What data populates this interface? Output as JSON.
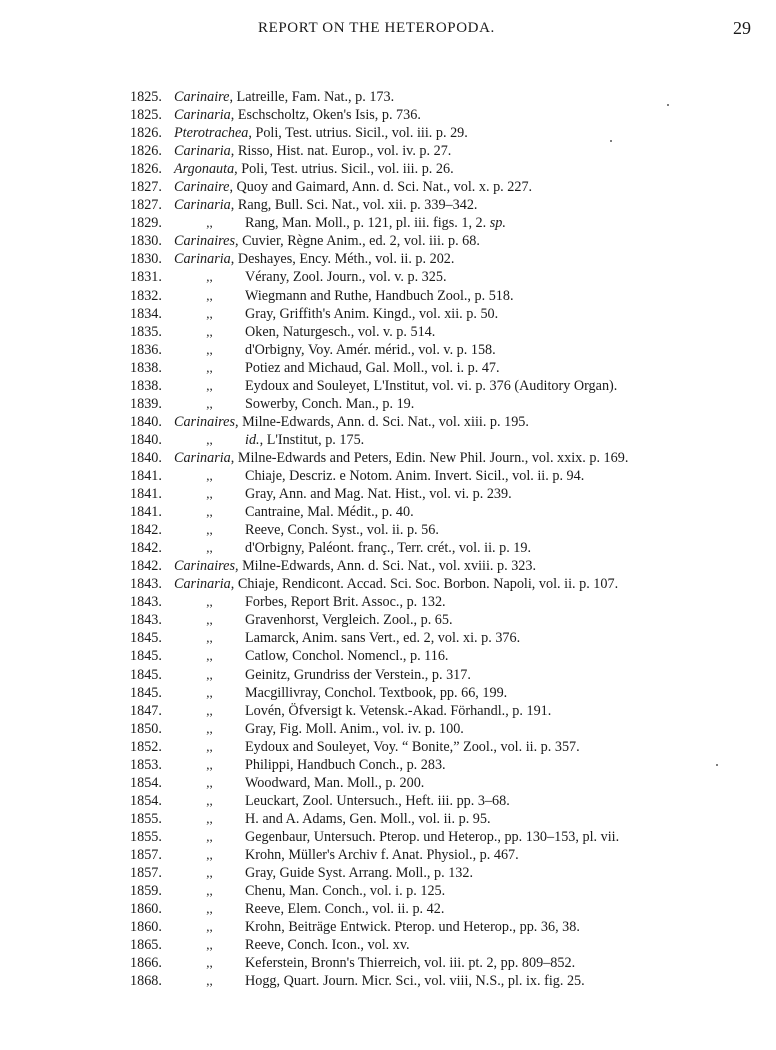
{
  "header": {
    "title": "REPORT ON THE HETEROPODA.",
    "page_number": "29"
  },
  "ditto_mark": ",,",
  "entries": [
    {
      "year": "1825.",
      "genus": "Carinaire",
      "ref": "Latreille, Fam. Nat., p. 173."
    },
    {
      "year": "1825.",
      "genus": "Carinaria",
      "ref": "Eschscholtz, Oken's Isis, p. 736."
    },
    {
      "year": "1826.",
      "genus": "Pterotrachea",
      "ref": "Poli, Test. utrius. Sicil., vol. iii. p. 29."
    },
    {
      "year": "1826.",
      "genus": "Carinaria",
      "ref": "Risso, Hist. nat. Europ., vol. iv. p. 27."
    },
    {
      "year": "1826.",
      "genus": "Argonauta",
      "ref": "Poli, Test. utrius. Sicil., vol. iii. p. 26."
    },
    {
      "year": "1827.",
      "genus": "Carinaire",
      "ref": "Quoy and Gaimard, Ann. d. Sci. Nat., vol. x. p. 227."
    },
    {
      "year": "1827.",
      "genus": "Carinaria",
      "ref": "Rang, Bull. Sci. Nat., vol. xii. p. 339–342."
    },
    {
      "year": "1829.",
      "genus": "",
      "ref": "Rang, Man. Moll., p. 121, pl. iii. figs. 1, 2. ",
      "post_em": "sp."
    },
    {
      "year": "1830.",
      "genus": "Carinaires",
      "ref": "Cuvier, Règne Anim., ed. 2, vol. iii. p. 68."
    },
    {
      "year": "1830.",
      "genus": "Carinaria",
      "ref": "Deshayes, Ency. Méth., vol. ii. p. 202."
    },
    {
      "year": "1831.",
      "genus": "",
      "ref": "Vérany, Zool. Journ., vol. v. p. 325."
    },
    {
      "year": "1832.",
      "genus": "",
      "ref": "Wiegmann and Ruthe, Handbuch Zool., p. 518."
    },
    {
      "year": "1834.",
      "genus": "",
      "ref": "Gray, Griffith's Anim. Kingd., vol. xii. p. 50."
    },
    {
      "year": "1835.",
      "genus": "",
      "ref": "Oken, Naturgesch., vol. v. p. 514."
    },
    {
      "year": "1836.",
      "genus": "",
      "ref": "d'Orbigny, Voy. Amér. mérid., vol. v. p. 158."
    },
    {
      "year": "1838.",
      "genus": "",
      "ref": "Potiez and Michaud, Gal. Moll., vol. i. p. 47."
    },
    {
      "year": "1838.",
      "genus": "",
      "ref": "Eydoux and Souleyet, L'Institut, vol. vi. p. 376 (Auditory Organ)."
    },
    {
      "year": "1839.",
      "genus": "",
      "ref": "Sowerby, Conch. Man., p. 19."
    },
    {
      "year": "1840.",
      "genus": "Carinaires",
      "ref": "Milne-Edwards, Ann. d. Sci. Nat., vol. xiii. p. 195."
    },
    {
      "year": "1840.",
      "genus": "",
      "pre_em": "id.",
      "ref": ", L'Institut, p. 175."
    },
    {
      "year": "1840.",
      "genus": "Carinaria",
      "ref": "Milne-Edwards and Peters, Edin. New Phil. Journ., vol. xxix. p. 169."
    },
    {
      "year": "1841.",
      "genus": "",
      "ref": "Chiaje, Descriz. e Notom. Anim. Invert. Sicil., vol. ii. p. 94."
    },
    {
      "year": "1841.",
      "genus": "",
      "ref": "Gray, Ann. and Mag. Nat. Hist., vol. vi. p. 239."
    },
    {
      "year": "1841.",
      "genus": "",
      "ref": "Cantraine, Mal. Médit., p. 40."
    },
    {
      "year": "1842.",
      "genus": "",
      "ref": "Reeve, Conch. Syst., vol. ii. p. 56."
    },
    {
      "year": "1842.",
      "genus": "",
      "ref": "d'Orbigny, Paléont. franç., Terr. crét., vol. ii. p. 19."
    },
    {
      "year": "1842.",
      "genus": "Carinaires",
      "ref": "Milne-Edwards, Ann. d. Sci. Nat., vol. xviii. p. 323."
    },
    {
      "year": "1843.",
      "genus": "Carinaria",
      "ref": "Chiaje, Rendicont. Accad. Sci. Soc. Borbon. Napoli, vol. ii. p. 107."
    },
    {
      "year": "1843.",
      "genus": "",
      "ref": "Forbes, Report Brit. Assoc., p. 132."
    },
    {
      "year": "1843.",
      "genus": "",
      "ref": "Gravenhorst, Vergleich. Zool., p. 65."
    },
    {
      "year": "1845.",
      "genus": "",
      "ref": "Lamarck, Anim. sans Vert., ed. 2, vol. xi. p. 376."
    },
    {
      "year": "1845.",
      "genus": "",
      "ref": "Catlow, Conchol. Nomencl., p. 116."
    },
    {
      "year": "1845.",
      "genus": "",
      "ref": "Geinitz, Grundriss der Verstein., p. 317."
    },
    {
      "year": "1845.",
      "genus": "",
      "ref": "Macgillivray, Conchol. Textbook, pp. 66, 199."
    },
    {
      "year": "1847.",
      "genus": "",
      "ref": "Lovén, Öfversigt k. Vetensk.-Akad. Förhandl., p. 191."
    },
    {
      "year": "1850.",
      "genus": "",
      "ref": "Gray, Fig. Moll. Anim., vol. iv. p. 100."
    },
    {
      "year": "1852.",
      "genus": "",
      "ref": "Eydoux and Souleyet, Voy. “ Bonite,” Zool., vol. ii. p. 357."
    },
    {
      "year": "1853.",
      "genus": "",
      "ref": "Philippi, Handbuch Conch., p. 283."
    },
    {
      "year": "1854.",
      "genus": "",
      "ref": "Woodward, Man. Moll., p. 200."
    },
    {
      "year": "1854.",
      "genus": "",
      "ref": "Leuckart, Zool. Untersuch., Heft. iii. pp. 3–68."
    },
    {
      "year": "1855.",
      "genus": "",
      "ref": "H. and A. Adams, Gen. Moll., vol. ii. p. 95."
    },
    {
      "year": "1855.",
      "genus": "",
      "ref": "Gegenbaur, Untersuch. Pterop. und Heterop., pp. 130–153, pl. vii."
    },
    {
      "year": "1857.",
      "genus": "",
      "ref": "Krohn, Müller's Archiv f. Anat. Physiol., p. 467."
    },
    {
      "year": "1857.",
      "genus": "",
      "ref": "Gray, Guide Syst. Arrang. Moll., p. 132."
    },
    {
      "year": "1859.",
      "genus": "",
      "ref": "Chenu, Man. Conch., vol. i. p. 125."
    },
    {
      "year": "1860.",
      "genus": "",
      "ref": "Reeve, Elem. Conch., vol. ii. p. 42."
    },
    {
      "year": "1860.",
      "genus": "",
      "ref": "Krohn, Beiträge Entwick. Pterop. und Heterop., pp. 36, 38."
    },
    {
      "year": "1865.",
      "genus": "",
      "ref": "Reeve, Conch. Icon., vol. xv."
    },
    {
      "year": "1866.",
      "genus": "",
      "ref": "Keferstein, Bronn's Thierreich, vol. iii. pt. 2, pp. 809–852."
    },
    {
      "year": "1868.",
      "genus": "",
      "ref": "Hogg, Quart. Journ. Micr. Sci., vol. viii, N.S., pl. ix. fig. 25."
    }
  ]
}
